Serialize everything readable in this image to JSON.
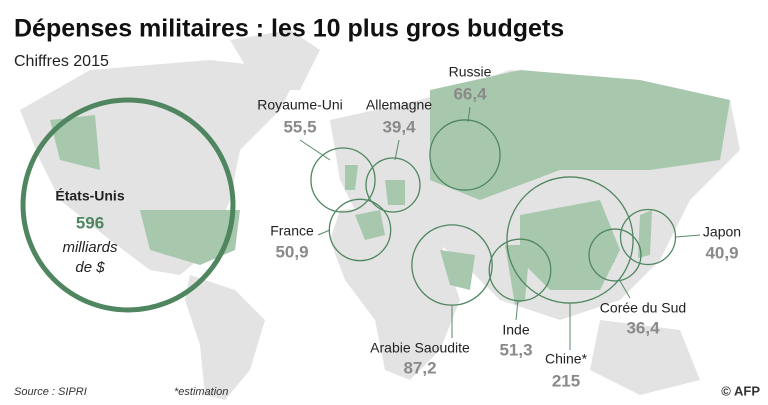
{
  "title": "Dépenses militaires : les 10 plus gros budgets",
  "subtitle": "Chiffres 2015",
  "unit_lines": [
    "milliards",
    "de $"
  ],
  "countries": [
    {
      "name": "États-Unis",
      "value": 596,
      "value_label": "596"
    },
    {
      "name": "Royaume-Uni",
      "value": 55.5,
      "value_label": "55,5"
    },
    {
      "name": "Allemagne",
      "value": 39.4,
      "value_label": "39,4"
    },
    {
      "name": "Russie",
      "value": 66.4,
      "value_label": "66,4"
    },
    {
      "name": "France",
      "value": 50.9,
      "value_label": "50,9"
    },
    {
      "name": "Arabie Saoudite",
      "value": 87.2,
      "value_label": "87,2"
    },
    {
      "name": "Inde",
      "value": 51.3,
      "value_label": "51,3"
    },
    {
      "name": "Chine*",
      "value": 215,
      "value_label": "215"
    },
    {
      "name": "Japon",
      "value": 40.9,
      "value_label": "40,9"
    },
    {
      "name": "Corée du Sud",
      "value": 36.4,
      "value_label": "36,4"
    }
  ],
  "footer": {
    "source": "Source : SIPRI",
    "note": "*estimation",
    "credit": "© AFP"
  }
}
